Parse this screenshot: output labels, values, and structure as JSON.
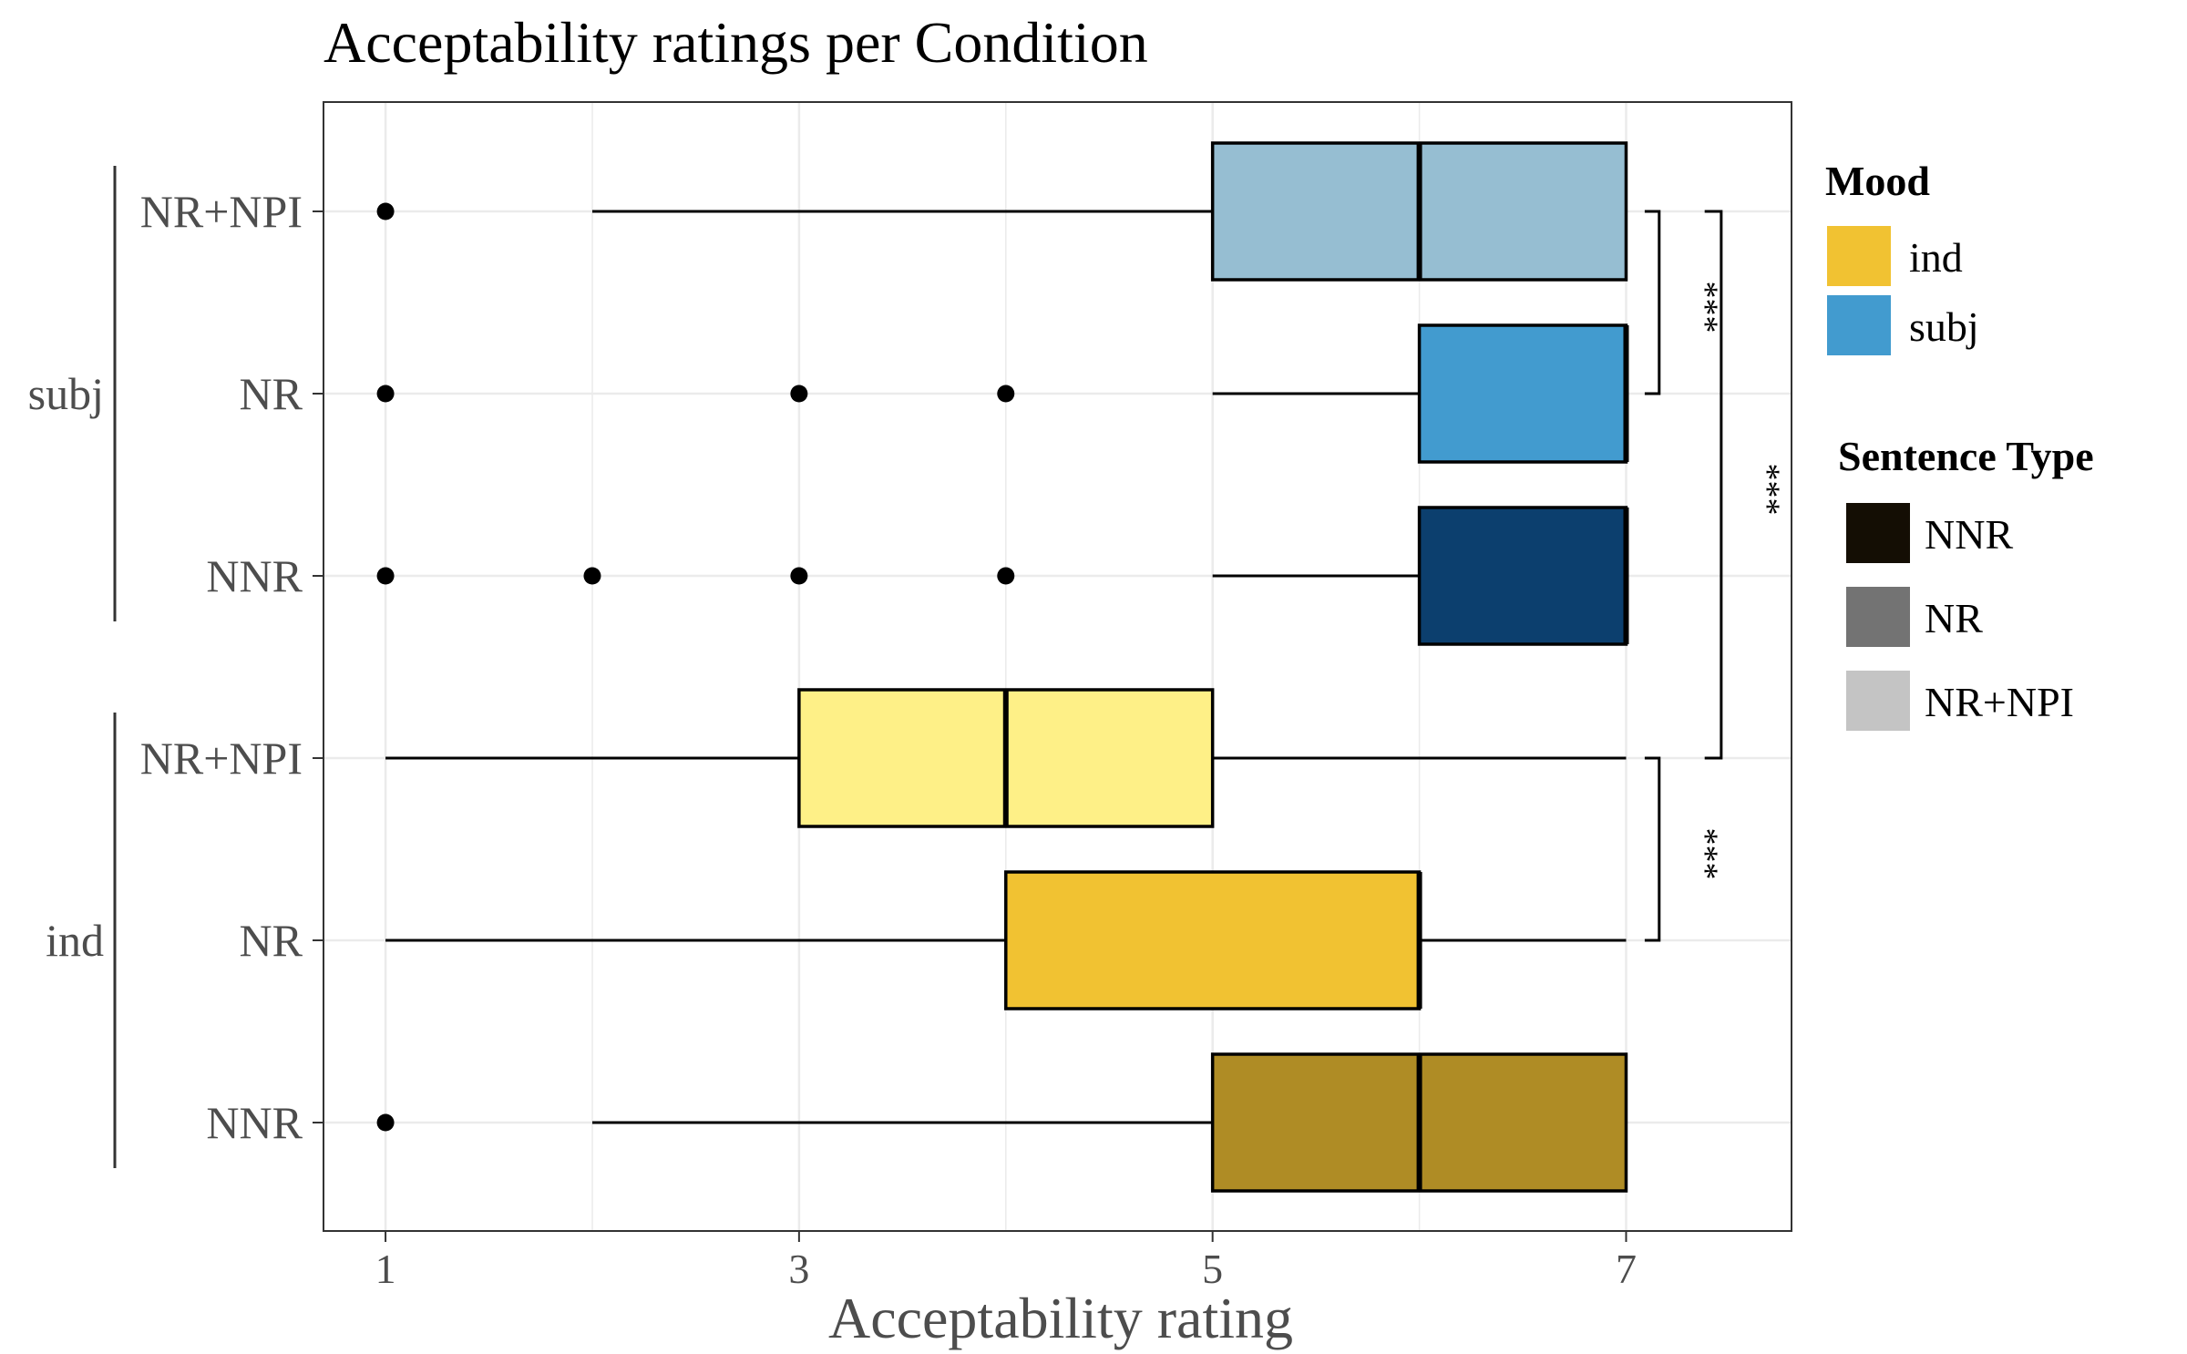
{
  "chart_data": {
    "type": "boxplot",
    "orientation": "horizontal",
    "title": "Acceptability ratings per Condition",
    "xlabel": "Acceptability rating",
    "ylabel": "",
    "xlim": [
      0.7,
      7.8
    ],
    "x_ticks": [
      "1",
      "3",
      "5",
      "7"
    ],
    "grid": true,
    "legend_position": "right",
    "groups": [
      {
        "label": "subj",
        "rows": [
          {
            "label": "NR+NPI",
            "sentence_type": "NR+NPI",
            "mood": "subj",
            "color": "#96BED2",
            "whisker_low": 2,
            "q1": 5,
            "median": 6,
            "q3": 7,
            "whisker_high": 7,
            "outliers": [
              1
            ]
          },
          {
            "label": "NR",
            "sentence_type": "NR",
            "mood": "subj",
            "color": "#429BCF",
            "whisker_low": 5,
            "q1": 6,
            "median": 7,
            "q3": 7,
            "whisker_high": 7,
            "outliers": [
              1,
              3,
              4
            ]
          },
          {
            "label": "NNR",
            "sentence_type": "NNR",
            "mood": "subj",
            "color": "#0C3F6E",
            "whisker_low": 5,
            "q1": 6,
            "median": 7,
            "q3": 7,
            "whisker_high": 7,
            "outliers": [
              1,
              2,
              3,
              4
            ]
          }
        ]
      },
      {
        "label": "ind",
        "rows": [
          {
            "label": "NR+NPI",
            "sentence_type": "NR+NPI",
            "mood": "ind",
            "color": "#FEF087",
            "whisker_low": 1,
            "q1": 3,
            "median": 4,
            "q3": 5,
            "whisker_high": 7,
            "outliers": []
          },
          {
            "label": "NR",
            "sentence_type": "NR",
            "mood": "ind",
            "color": "#F1C232",
            "whisker_low": 1,
            "q1": 4,
            "median": 6,
            "q3": 6,
            "whisker_high": 7,
            "outliers": []
          },
          {
            "label": "NNR",
            "sentence_type": "NNR",
            "mood": "ind",
            "color": "#AF8C25",
            "whisker_low": 2,
            "q1": 5,
            "median": 6,
            "q3": 7,
            "whisker_high": 7,
            "outliers": [
              1
            ]
          }
        ]
      }
    ],
    "significance": [
      {
        "from_row": 0,
        "to_row": 1,
        "label": "***"
      },
      {
        "from_row": 0,
        "to_row": 3,
        "label": "***"
      },
      {
        "from_row": 3,
        "to_row": 4,
        "label": "***"
      }
    ],
    "legends": [
      {
        "title": "Mood",
        "items": [
          {
            "label": "ind",
            "color": "#F1C232"
          },
          {
            "label": "subj",
            "color": "#429BCF"
          }
        ]
      },
      {
        "title": "Sentence Type",
        "items": [
          {
            "label": "NNR",
            "color": "#140E04"
          },
          {
            "label": "NR",
            "color": "#737373"
          },
          {
            "label": "NR+NPI",
            "color": "#C4C4C4"
          }
        ]
      }
    ]
  }
}
